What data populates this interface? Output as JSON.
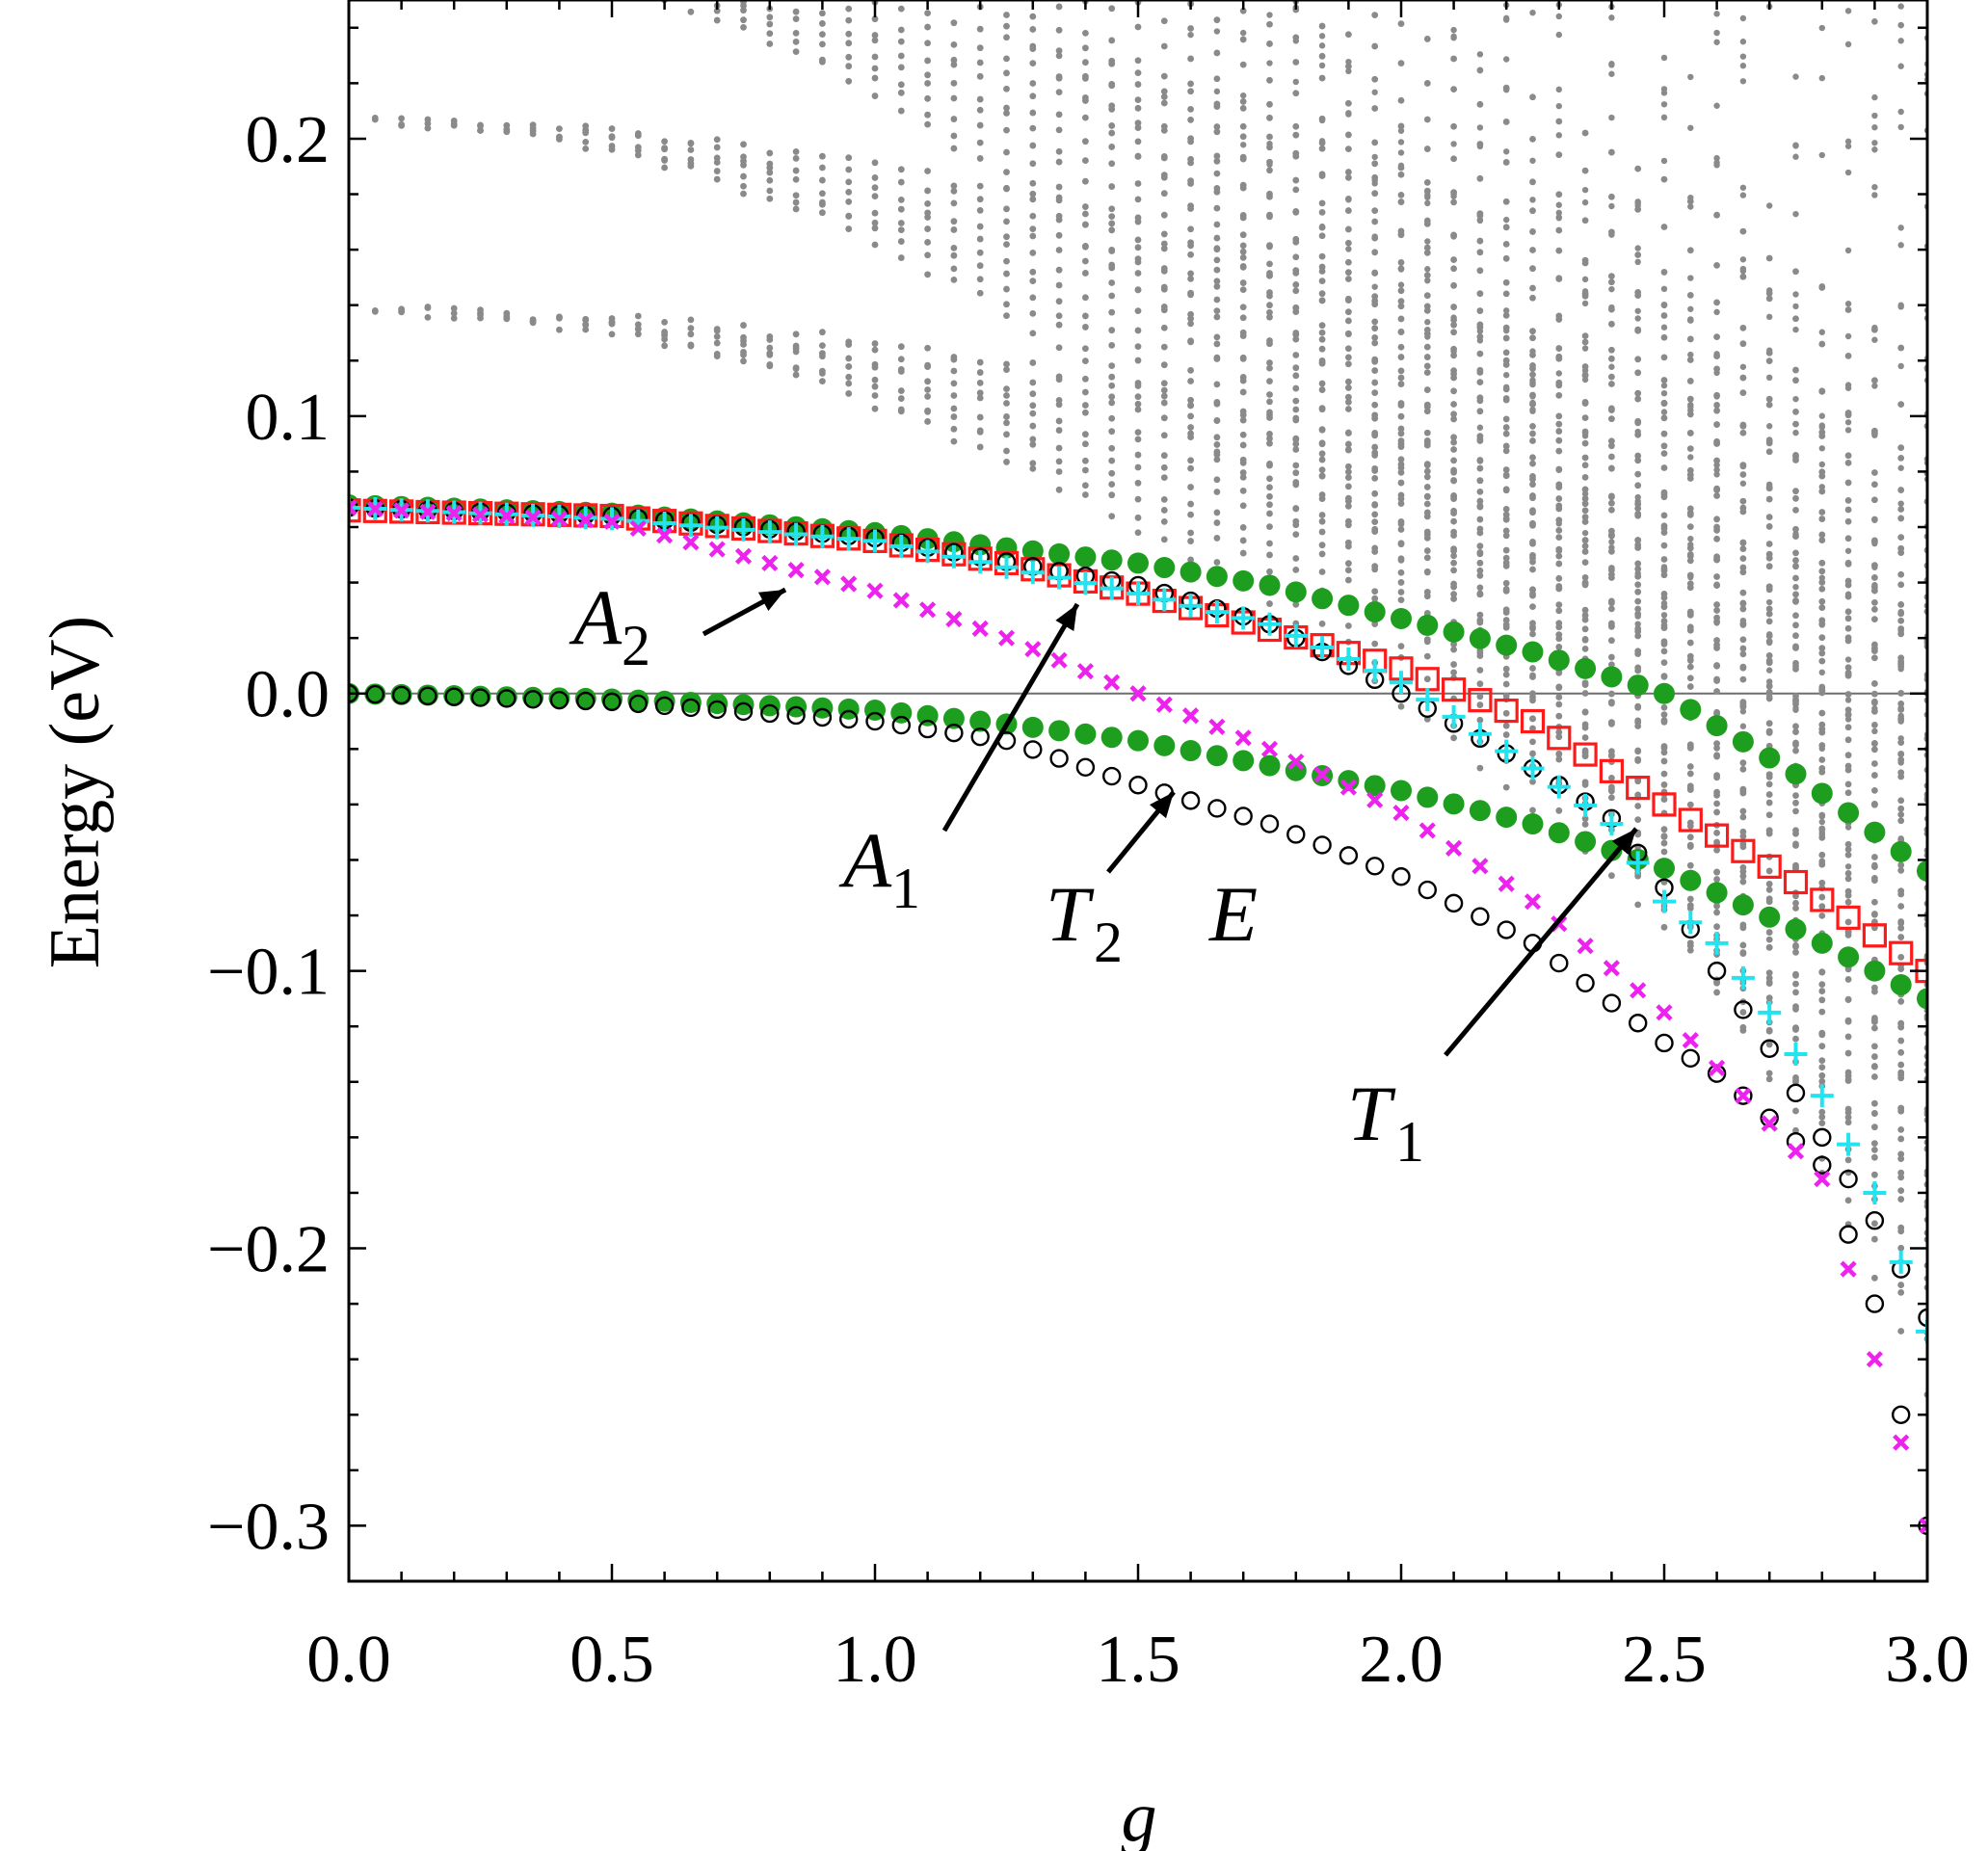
{
  "chart_data": {
    "type": "scatter",
    "xlabel": "g",
    "ylabel": "Energy (eV)",
    "xlim": [
      0.0,
      3.0
    ],
    "ylim": [
      -0.32,
      0.25
    ],
    "x_ticks": [
      "0.0",
      "0.5",
      "1.0",
      "1.5",
      "2.0",
      "2.5",
      "3.0"
    ],
    "y_ticks": [
      "0.2",
      "0.1",
      "0.0",
      "−0.1",
      "−0.2",
      "−0.3"
    ],
    "x_tick_values": [
      0.0,
      0.5,
      1.0,
      1.5,
      2.0,
      2.5,
      3.0
    ],
    "y_tick_values": [
      0.2,
      0.1,
      0.0,
      -0.1,
      -0.2,
      -0.3
    ],
    "reference_line_y": 0.0,
    "colors": {
      "gray_dots": "#8a8a8a",
      "green": "#1e9e1e",
      "red": "#ff1a1a",
      "cyan": "#22e3ee",
      "magenta": "#ee22ee",
      "black": "#000000"
    },
    "x_sample": [
      0.0,
      0.05,
      0.1,
      0.15,
      0.2,
      0.25,
      0.3,
      0.35,
      0.4,
      0.45,
      0.5,
      0.55,
      0.6,
      0.65,
      0.7,
      0.75,
      0.8,
      0.85,
      0.9,
      0.95,
      1.0,
      1.05,
      1.1,
      1.15,
      1.2,
      1.25,
      1.3,
      1.35,
      1.4,
      1.45,
      1.5,
      1.55,
      1.6,
      1.65,
      1.7,
      1.75,
      1.8,
      1.85,
      1.9,
      1.95,
      2.0,
      2.05,
      2.1,
      2.15,
      2.2,
      2.25,
      2.3,
      2.35,
      2.4,
      2.45,
      2.5,
      2.55,
      2.6,
      2.65,
      2.7,
      2.75,
      2.8,
      2.85,
      2.9,
      2.95,
      3.0
    ],
    "series": [
      {
        "marker": "filled-green-circle",
        "color": "#1e9e1e",
        "curves": [
          {
            "x": [
              0.0,
              0.5,
              1.0,
              1.5,
              1.75,
              2.0,
              2.25,
              2.5,
              2.75,
              3.0
            ],
            "y": [
              0.068,
              0.065,
              0.058,
              0.047,
              0.039,
              0.027,
              0.015,
              0.0,
              -0.029,
              -0.064
            ]
          },
          {
            "x": [
              0.0,
              0.5,
              1.0,
              1.25,
              1.5,
              1.75,
              2.0,
              2.25,
              2.5,
              2.75,
              3.0
            ],
            "y": [
              0.0,
              -0.002,
              -0.006,
              -0.011,
              -0.017,
              -0.026,
              -0.035,
              -0.047,
              -0.063,
              -0.085,
              -0.11
            ]
          }
        ]
      },
      {
        "marker": "open-red-square",
        "color": "#ff1a1a",
        "curves": [
          {
            "x": [
              0.0,
              0.5,
              1.0,
              1.25,
              1.5,
              1.75,
              2.0,
              2.25,
              2.5,
              2.75,
              3.0
            ],
            "y": [
              0.066,
              0.064,
              0.055,
              0.047,
              0.036,
              0.023,
              0.009,
              -0.01,
              -0.04,
              -0.068,
              -0.1
            ]
          }
        ]
      },
      {
        "marker": "open-black-circle",
        "color": "#000000",
        "curves": [
          {
            "x": [
              0.0,
              0.5,
              1.0,
              1.5,
              1.75,
              2.0,
              2.25,
              2.4,
              2.5,
              2.6,
              2.7,
              2.8,
              2.9,
              3.0
            ],
            "y": [
              0.067,
              0.064,
              0.056,
              0.039,
              0.025,
              0.0,
              -0.027,
              -0.045,
              -0.07,
              -0.1,
              -0.128,
              -0.16,
              -0.19,
              -0.225
            ]
          },
          {
            "x": [
              0.0,
              0.5,
              1.0,
              1.25,
              1.5,
              1.75,
              2.0,
              2.25,
              2.5,
              2.6,
              2.7,
              2.8,
              2.9,
              3.0
            ],
            "y": [
              0.0,
              -0.003,
              -0.01,
              -0.017,
              -0.033,
              -0.047,
              -0.066,
              -0.09,
              -0.126,
              -0.137,
              -0.153,
              -0.17,
              -0.22,
              -0.3
            ]
          }
        ]
      },
      {
        "marker": "cyan-plus",
        "color": "#22e3ee",
        "curves": [
          {
            "x": [
              0.0,
              0.5,
              1.0,
              1.5,
              1.75,
              2.0,
              2.25,
              2.4,
              2.5,
              2.6,
              2.7,
              2.8,
              2.9,
              3.0
            ],
            "y": [
              0.067,
              0.063,
              0.055,
              0.036,
              0.025,
              0.004,
              -0.027,
              -0.047,
              -0.075,
              -0.09,
              -0.115,
              -0.145,
              -0.18,
              -0.23
            ]
          }
        ]
      },
      {
        "marker": "magenta-cross",
        "color": "#ee22ee",
        "curves": [
          {
            "x": [
              0.0,
              0.5,
              1.0,
              1.25,
              1.5,
              1.75,
              2.0,
              2.25,
              2.5,
              2.6,
              2.7,
              2.8,
              2.9,
              3.0
            ],
            "y": [
              0.067,
              0.062,
              0.037,
              0.02,
              0.0,
              -0.02,
              -0.043,
              -0.075,
              -0.115,
              -0.135,
              -0.155,
              -0.175,
              -0.24,
              -0.3
            ]
          }
        ]
      }
    ],
    "annotations": [
      {
        "label": "A",
        "sub": "2"
      },
      {
        "label": "A",
        "sub": "1"
      },
      {
        "label": "T",
        "sub": "2"
      },
      {
        "label": "E",
        "sub": ""
      },
      {
        "label": "T",
        "sub": "1"
      }
    ]
  }
}
